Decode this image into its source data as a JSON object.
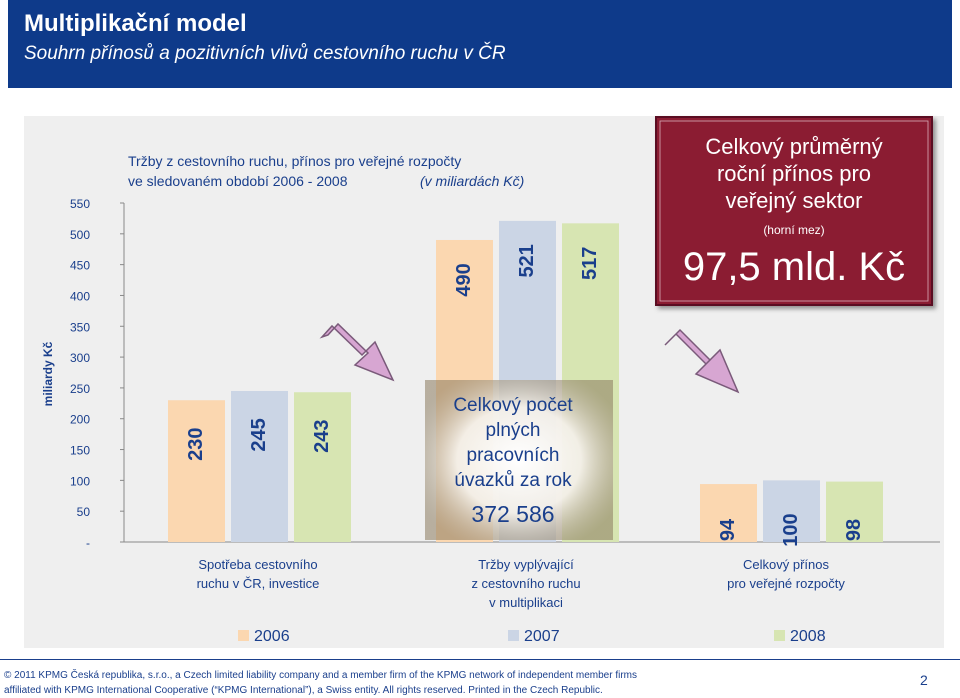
{
  "header": {
    "title": "Multiplikační model",
    "subtitle": "Souhrn přínosů a pozitivních vlivů cestovního ruchu v ČR"
  },
  "chart_data": {
    "type": "bar",
    "title_line1": "Tržby z cestovního ruchu, přínos pro veřejné rozpočty",
    "title_line2": "ve sledovaném období 2006 - 2008",
    "title_unit": "(v miliardách Kč)",
    "ylabel": "miliardy Kč",
    "ylim": [
      0,
      550
    ],
    "yticks": [
      "-",
      "50",
      "100",
      "150",
      "200",
      "250",
      "300",
      "350",
      "400",
      "450",
      "500",
      "550"
    ],
    "categories": [
      [
        "Spotřeba cestovního",
        "ruchu v ČR, investice"
      ],
      [
        "Tržby vyplývající",
        "z cestovního ruchu",
        "v multiplikaci"
      ],
      [
        "Celkový přínos",
        "pro veřejné rozpočty"
      ]
    ],
    "series": [
      {
        "name": "2006",
        "values": [
          230,
          490,
          94
        ],
        "labels": [
          "230",
          "490",
          "94"
        ],
        "color": "#fbd7b0"
      },
      {
        "name": "2007",
        "values": [
          245,
          521,
          100
        ],
        "labels": [
          "245",
          "521",
          "100"
        ],
        "color": "#cbd5e5"
      },
      {
        "name": "2008",
        "values": [
          243,
          517,
          98
        ],
        "labels": [
          "243",
          "517",
          "98"
        ],
        "color": "#d7e5b2"
      }
    ],
    "legend_position": "bottom",
    "grid": false
  },
  "callouts": {
    "sector_box": {
      "line1": "Celkový průměrný",
      "line2": "roční přínos pro",
      "line3": "veřejný sektor",
      "note": "(horní mez)",
      "value": "97,5 mld. Kč",
      "color": "#8b1f32"
    },
    "jobs_box": {
      "line1": "Celkový počet",
      "line2": "plných",
      "line3": "pracovních",
      "line4": "úvazků za rok",
      "value": "372 586"
    }
  },
  "footer": {
    "line1": "© 2011 KPMG Česká republika, s.r.o., a Czech limited liability company and a member firm of the KPMG network of independent member firms",
    "line2": "affiliated with KPMG International Cooperative (“KPMG International”), a Swiss entity. All rights reserved. Printed in the Czech Republic.",
    "page": "2"
  }
}
